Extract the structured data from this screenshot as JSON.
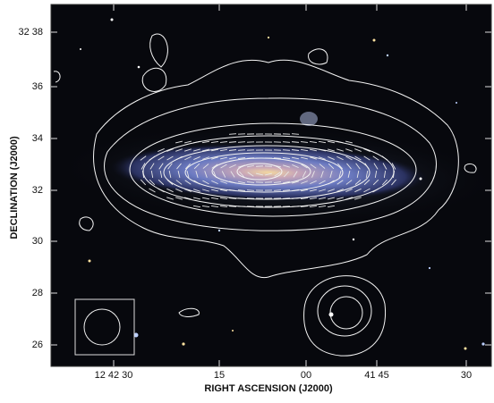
{
  "axes": {
    "y_title": "DECLINATION (J2000)",
    "x_title": "RIGHT ASCENSION (J2000)",
    "y_ticks": [
      "32 38",
      "36",
      "34",
      "32",
      "30",
      "28",
      "26"
    ],
    "x_ticks": [
      "12 42 30",
      "15",
      "00",
      "41 45",
      "30"
    ]
  }
}
